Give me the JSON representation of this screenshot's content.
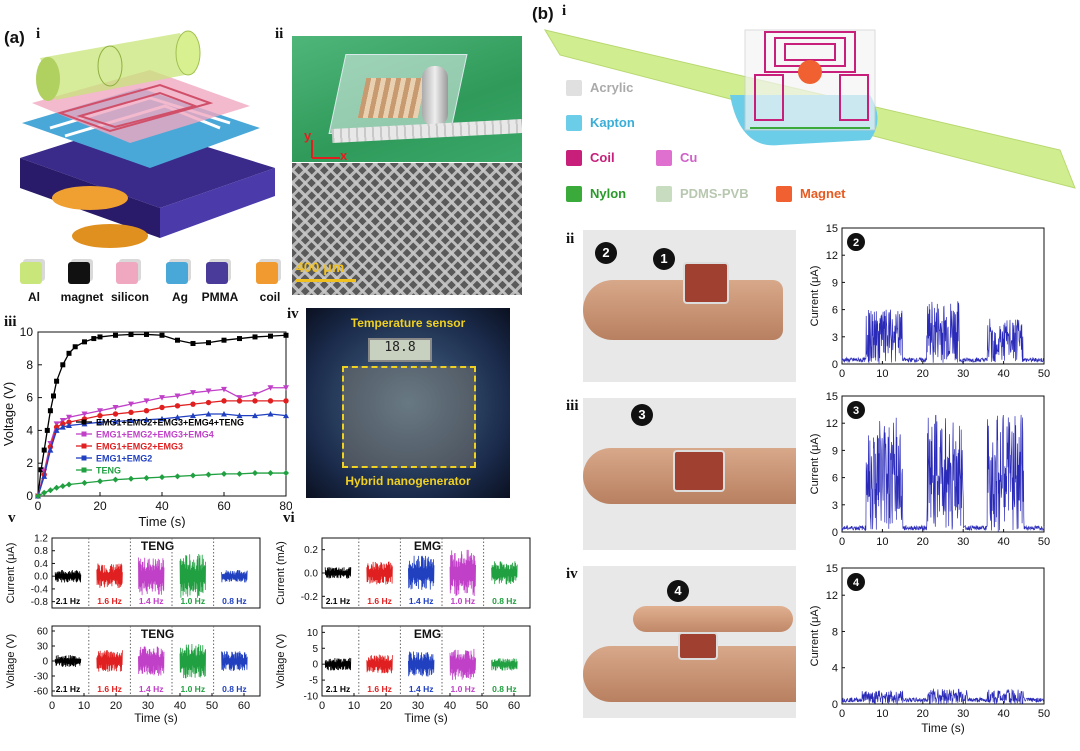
{
  "panel_a": {
    "label": "(a)",
    "sub_i": "i",
    "sub_ii": "ii",
    "sub_iii": "iii",
    "sub_iv": "iv",
    "sub_v": "v",
    "sub_vi": "vi",
    "materials": [
      {
        "name": "Al",
        "color": "#c8e67a"
      },
      {
        "name": "magnet",
        "color": "#111111"
      },
      {
        "name": "silicon",
        "color": "#f0a8c0"
      },
      {
        "name": "Ag",
        "color": "#4aa8d8"
      },
      {
        "name": "PMMA",
        "color": "#4a3a9a"
      },
      {
        "name": "coil",
        "color": "#f09a30"
      }
    ],
    "photo_axes": {
      "y": "y",
      "x": "x"
    },
    "scale_bar": "400 μm",
    "iv_labels": {
      "top": "Temperature sensor",
      "bottom": "Hybrid nanogenerator",
      "display": "18.8"
    }
  },
  "panel_b": {
    "label": "(b)",
    "sub_i": "i",
    "sub_ii": "ii",
    "sub_iii": "iii",
    "sub_iv": "iv",
    "legend": [
      {
        "name": "Acrylic",
        "color": "#e0e0e0",
        "text_color": "#aaaaaa"
      },
      {
        "name": "Kapton",
        "color": "#6ccde8",
        "text_color": "#3aaed8"
      },
      {
        "name": "Coil",
        "color": "#c8207a",
        "text_color": "#c8207a"
      },
      {
        "name": "Cu",
        "color": "#e070d0",
        "text_color": "#d060c8"
      },
      {
        "name": "Nylon",
        "color": "#3aaa3a",
        "text_color": "#2a9a2a"
      },
      {
        "name": "PDMS-PVB",
        "color": "#c8dcc0",
        "text_color": "#b8c8b0"
      },
      {
        "name": "Magnet",
        "color": "#f06030",
        "text_color": "#e85a20"
      }
    ],
    "markers": [
      "1",
      "2",
      "3",
      "4"
    ]
  },
  "chart_data": [
    {
      "id": "a-iii",
      "type": "line",
      "xlabel": "Time (s)",
      "ylabel": "Voltage (V)",
      "xlim": [
        0,
        80
      ],
      "ylim": [
        0,
        10
      ],
      "xticks": [
        "0",
        "20",
        "40",
        "60",
        "80"
      ],
      "yticks": [
        "0",
        "2",
        "4",
        "6",
        "8",
        "10"
      ],
      "legend_position": "center",
      "series": [
        {
          "name": "EMG1+EMG2+EMG3+EMG4+TENG",
          "color": "#000000",
          "marker": "square",
          "x": [
            0,
            1,
            2,
            3,
            4,
            5,
            6,
            8,
            10,
            12,
            15,
            18,
            20,
            25,
            30,
            35,
            40,
            45,
            50,
            55,
            60,
            65,
            70,
            75,
            80
          ],
          "y": [
            0,
            1.6,
            2.8,
            4.0,
            5.2,
            6.1,
            7.0,
            8.0,
            8.7,
            9.1,
            9.4,
            9.6,
            9.7,
            9.8,
            9.85,
            9.85,
            9.8,
            9.5,
            9.3,
            9.35,
            9.5,
            9.6,
            9.7,
            9.75,
            9.8
          ]
        },
        {
          "name": "EMG1+EMG2+EMG3+EMG4",
          "color": "#c040c8",
          "marker": "triangle-down",
          "x": [
            0,
            2,
            4,
            6,
            8,
            10,
            15,
            20,
            25,
            30,
            35,
            40,
            45,
            50,
            55,
            60,
            65,
            70,
            75,
            80
          ],
          "y": [
            0,
            1.5,
            3.2,
            4.4,
            4.6,
            4.8,
            5.0,
            5.2,
            5.4,
            5.6,
            5.8,
            6.0,
            6.1,
            6.3,
            6.4,
            6.5,
            6.0,
            6.2,
            6.6,
            6.6
          ]
        },
        {
          "name": "EMG1+EMG2+EMG3",
          "color": "#e02020",
          "marker": "circle",
          "x": [
            0,
            2,
            4,
            6,
            8,
            10,
            15,
            20,
            25,
            30,
            35,
            40,
            45,
            50,
            55,
            60,
            65,
            70,
            75,
            80
          ],
          "y": [
            0,
            1.3,
            3.0,
            4.2,
            4.4,
            4.5,
            4.7,
            4.9,
            5.0,
            5.1,
            5.2,
            5.4,
            5.5,
            5.6,
            5.7,
            5.8,
            5.8,
            5.8,
            5.8,
            5.8
          ]
        },
        {
          "name": "EMG1+EMG2",
          "color": "#2040c0",
          "marker": "triangle-up",
          "x": [
            0,
            2,
            4,
            6,
            8,
            10,
            15,
            20,
            25,
            30,
            35,
            40,
            45,
            50,
            55,
            60,
            65,
            70,
            75,
            80
          ],
          "y": [
            0,
            1.2,
            2.8,
            4.0,
            4.2,
            4.3,
            4.4,
            4.5,
            4.55,
            4.6,
            4.65,
            4.7,
            4.8,
            4.9,
            5.0,
            5.0,
            4.9,
            4.9,
            5.0,
            4.9
          ]
        },
        {
          "name": "TENG",
          "color": "#20a040",
          "marker": "diamond",
          "x": [
            0,
            2,
            4,
            6,
            8,
            10,
            15,
            20,
            25,
            30,
            35,
            40,
            45,
            50,
            55,
            60,
            65,
            70,
            75,
            80
          ],
          "y": [
            0,
            0.2,
            0.35,
            0.5,
            0.6,
            0.7,
            0.8,
            0.9,
            1.0,
            1.05,
            1.1,
            1.15,
            1.2,
            1.25,
            1.3,
            1.35,
            1.35,
            1.4,
            1.4,
            1.4
          ]
        }
      ]
    },
    {
      "id": "a-v-top",
      "type": "line",
      "title": "TENG",
      "ylabel": "Current (μA)",
      "xlim": [
        0,
        65
      ],
      "ylim": [
        -1.0,
        1.2
      ],
      "yticks": [
        "1.2",
        "0.8",
        "0.4",
        "0.0",
        "-0.4",
        "-0.8"
      ],
      "segments": [
        {
          "label": "2.1 Hz",
          "color": "#000000",
          "amp": 0.2
        },
        {
          "label": "1.6 Hz",
          "color": "#e02020",
          "amp": 0.4
        },
        {
          "label": "1.4 Hz",
          "color": "#c040c8",
          "amp": 0.6
        },
        {
          "label": "1.0 Hz",
          "color": "#20a040",
          "amp": 0.7
        },
        {
          "label": "0.8 Hz",
          "color": "#2040c0",
          "amp": 0.2
        }
      ]
    },
    {
      "id": "a-v-bottom",
      "type": "line",
      "title": "TENG",
      "xlabel": "Time (s)",
      "ylabel": "Voltage (V)",
      "xlim": [
        0,
        65
      ],
      "ylim": [
        -70,
        70
      ],
      "xticks": [
        "0",
        "10",
        "20",
        "30",
        "40",
        "50",
        "60"
      ],
      "yticks": [
        "60",
        "30",
        "0",
        "-30",
        "-60"
      ],
      "segments": [
        {
          "label": "2.1 Hz",
          "color": "#000000",
          "amp": 12
        },
        {
          "label": "1.6 Hz",
          "color": "#e02020",
          "amp": 22
        },
        {
          "label": "1.4 Hz",
          "color": "#c040c8",
          "amp": 30
        },
        {
          "label": "1.0 Hz",
          "color": "#20a040",
          "amp": 35
        },
        {
          "label": "0.8 Hz",
          "color": "#2040c0",
          "amp": 20
        }
      ]
    },
    {
      "id": "a-vi-top",
      "type": "line",
      "title": "EMG",
      "ylabel": "Current (mA)",
      "xlim": [
        0,
        65
      ],
      "ylim": [
        -0.3,
        0.3
      ],
      "yticks": [
        "0.2",
        "0.0",
        "-0.2"
      ],
      "segments": [
        {
          "label": "2.1 Hz",
          "color": "#000000",
          "amp": 0.05
        },
        {
          "label": "1.6 Hz",
          "color": "#e02020",
          "amp": 0.1
        },
        {
          "label": "1.4 Hz",
          "color": "#2040c0",
          "amp": 0.15
        },
        {
          "label": "1.0 Hz",
          "color": "#c040c8",
          "amp": 0.2
        },
        {
          "label": "0.8 Hz",
          "color": "#20a040",
          "amp": 0.1
        }
      ]
    },
    {
      "id": "a-vi-bottom",
      "type": "line",
      "title": "EMG",
      "xlabel": "Time (s)",
      "ylabel": "Voltage (V)",
      "xlim": [
        0,
        65
      ],
      "ylim": [
        -10,
        12
      ],
      "xticks": [
        "0",
        "10",
        "20",
        "30",
        "40",
        "50",
        "60"
      ],
      "yticks": [
        "10",
        "5",
        "0",
        "-5",
        "-10"
      ],
      "segments": [
        {
          "label": "2.1 Hz",
          "color": "#000000",
          "amp": 2
        },
        {
          "label": "1.6 Hz",
          "color": "#e02020",
          "amp": 3
        },
        {
          "label": "1.4 Hz",
          "color": "#2040c0",
          "amp": 4
        },
        {
          "label": "1.0 Hz",
          "color": "#c040c8",
          "amp": 5
        },
        {
          "label": "0.8 Hz",
          "color": "#20a040",
          "amp": 2
        }
      ]
    },
    {
      "id": "b-ii",
      "type": "bar",
      "marker": "2",
      "ylabel": "Current (μA)",
      "xlim": [
        0,
        50
      ],
      "ylim": [
        0,
        15
      ],
      "xticks": [
        "0",
        "10",
        "20",
        "30",
        "40",
        "50"
      ],
      "yticks": [
        "0",
        "3",
        "6",
        "9",
        "12",
        "15"
      ],
      "color": "#2a2ab8",
      "bursts": [
        [
          6,
          15,
          6
        ],
        [
          21,
          29,
          7
        ],
        [
          36,
          45,
          5
        ]
      ]
    },
    {
      "id": "b-iii",
      "type": "bar",
      "marker": "3",
      "ylabel": "Current (μA)",
      "xlim": [
        0,
        50
      ],
      "ylim": [
        0,
        15
      ],
      "xticks": [
        "0",
        "10",
        "20",
        "30",
        "40",
        "50"
      ],
      "yticks": [
        "0",
        "3",
        "6",
        "9",
        "12",
        "15"
      ],
      "color": "#2a2ab8",
      "bursts": [
        [
          6,
          15,
          13
        ],
        [
          21,
          30,
          13
        ],
        [
          36,
          45,
          13
        ]
      ]
    },
    {
      "id": "b-iv",
      "type": "bar",
      "marker": "4",
      "xlabel": "Time (s)",
      "ylabel": "Current (μA)",
      "xlim": [
        0,
        50
      ],
      "ylim": [
        0,
        15
      ],
      "xticks": [
        "0",
        "10",
        "20",
        "30",
        "40",
        "50"
      ],
      "yticks": [
        "0",
        "4",
        "8",
        "12",
        "15"
      ],
      "color": "#2a2ab8",
      "bursts": [
        [
          5,
          15,
          1.5
        ],
        [
          21,
          31,
          1.7
        ],
        [
          36,
          45,
          1.6
        ]
      ]
    }
  ]
}
